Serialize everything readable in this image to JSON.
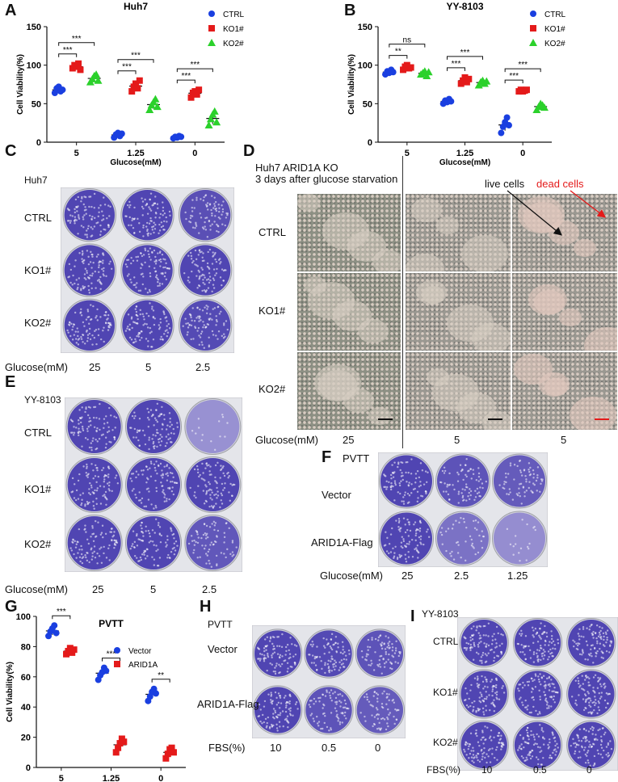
{
  "panels": {
    "A": "A",
    "B": "B",
    "C": "C",
    "D": "D",
    "E": "E",
    "F": "F",
    "G": "G",
    "H": "H",
    "I": "I"
  },
  "colors": {
    "ctrl": "#1a3fe0",
    "ko1": "#e41a1a",
    "ko2": "#2bd12b",
    "stain": "#3b2fa8",
    "stain_light": "#c9c4e8"
  },
  "chart_data": [
    {
      "id": "A",
      "type": "scatter",
      "title": "Huh7",
      "xlabel": "Glucose(mM)",
      "ylabel": "Cell Viability(%)",
      "categories": [
        "5",
        "1.25",
        "0"
      ],
      "ylim": [
        0,
        150
      ],
      "yticks": [
        0,
        50,
        100,
        150
      ],
      "series": [
        {
          "name": "CTRL",
          "color": "#1a3fe0",
          "marker": "circle",
          "values": [
            [
              64,
              70,
              72,
              66,
              68
            ],
            [
              6,
              10,
              12,
              8,
              11
            ],
            [
              5,
              7,
              6,
              8,
              7
            ]
          ]
        },
        {
          "name": "KO1#",
          "color": "#e41a1a",
          "marker": "square",
          "values": [
            [
              96,
              100,
              98,
              102,
              94
            ],
            [
              66,
              72,
              76,
              70,
              80
            ],
            [
              58,
              64,
              66,
              62,
              68
            ]
          ]
        },
        {
          "name": "KO2#",
          "color": "#2bd12b",
          "marker": "triangle",
          "values": [
            [
              78,
              82,
              86,
              88,
              80
            ],
            [
              42,
              48,
              52,
              56,
              46
            ],
            [
              22,
              30,
              36,
              40,
              26
            ]
          ]
        }
      ],
      "legend_position": "top-right",
      "annotations": [
        {
          "text": "***",
          "from": 0,
          "to": 1,
          "cat": 0,
          "level": 0
        },
        {
          "text": "***",
          "from": 0,
          "to": 2,
          "cat": 0,
          "level": 1
        },
        {
          "text": "***",
          "from": 0,
          "to": 1,
          "cat": 1,
          "level": 0
        },
        {
          "text": "***",
          "from": 0,
          "to": 2,
          "cat": 1,
          "level": 1
        },
        {
          "text": "***",
          "from": 0,
          "to": 1,
          "cat": 2,
          "level": 0
        },
        {
          "text": "***",
          "from": 0,
          "to": 2,
          "cat": 2,
          "level": 1
        }
      ]
    },
    {
      "id": "B",
      "type": "scatter",
      "title": "YY-8103",
      "xlabel": "Glucose(mM)",
      "ylabel": "Cell Viability(%)",
      "categories": [
        "5",
        "1.25",
        "0"
      ],
      "ylim": [
        0,
        150
      ],
      "yticks": [
        0,
        50,
        100,
        150
      ],
      "series": [
        {
          "name": "CTRL",
          "color": "#1a3fe0",
          "marker": "circle",
          "values": [
            [
              88,
              92,
              90,
              94,
              91
            ],
            [
              50,
              54,
              52,
              56,
              53
            ],
            [
              12,
              20,
              26,
              32,
              22
            ]
          ]
        },
        {
          "name": "KO1#",
          "color": "#e41a1a",
          "marker": "square",
          "values": [
            [
              94,
              98,
              100,
              96,
              97
            ],
            [
              76,
              80,
              84,
              78,
              82
            ],
            [
              66,
              68,
              66,
              67,
              68
            ]
          ]
        },
        {
          "name": "KO2#",
          "color": "#2bd12b",
          "marker": "triangle",
          "values": [
            [
              88,
              90,
              92,
              86,
              91
            ],
            [
              74,
              78,
              80,
              76,
              79
            ],
            [
              42,
              46,
              50,
              48,
              45
            ]
          ]
        }
      ],
      "legend_position": "top-right",
      "annotations": [
        {
          "text": "**",
          "from": 0,
          "to": 1,
          "cat": 0,
          "level": 0
        },
        {
          "text": "ns",
          "from": 0,
          "to": 2,
          "cat": 0,
          "level": 1
        },
        {
          "text": "***",
          "from": 0,
          "to": 1,
          "cat": 1,
          "level": 0
        },
        {
          "text": "***",
          "from": 0,
          "to": 2,
          "cat": 1,
          "level": 1
        },
        {
          "text": "***",
          "from": 0,
          "to": 1,
          "cat": 2,
          "level": 0
        },
        {
          "text": "***",
          "from": 0,
          "to": 2,
          "cat": 2,
          "level": 1
        }
      ]
    },
    {
      "id": "G",
      "type": "scatter",
      "title": "PVTT",
      "xlabel": "Glucose(mM)",
      "ylabel": "Cell Viability(%)",
      "categories": [
        "5",
        "1.25",
        "0"
      ],
      "ylim": [
        0,
        100
      ],
      "yticks": [
        0,
        20,
        40,
        60,
        80,
        100
      ],
      "series": [
        {
          "name": "Vector",
          "color": "#1a3fe0",
          "marker": "circle",
          "values": [
            [
              87,
              90,
              92,
              94,
              89
            ],
            [
              58,
              61,
              63,
              66,
              64
            ],
            [
              44,
              47,
              50,
              52,
              49
            ]
          ]
        },
        {
          "name": "ARID1A",
          "color": "#e41a1a",
          "marker": "square",
          "values": [
            [
              75,
              77,
              79,
              76,
              78
            ],
            [
              10,
              13,
              16,
              19,
              17
            ],
            [
              6,
              9,
              12,
              13,
              10
            ]
          ]
        }
      ],
      "legend_position": "right",
      "annotations": [
        {
          "text": "***",
          "from": 0,
          "to": 1,
          "cat": 0,
          "level": 0
        },
        {
          "text": "***",
          "from": 0,
          "to": 1,
          "cat": 1,
          "level": 0
        },
        {
          "text": "**",
          "from": 0,
          "to": 1,
          "cat": 2,
          "level": 0
        }
      ]
    }
  ],
  "panelC": {
    "cell_line": "Huh7",
    "rows": [
      "CTRL",
      "KO1#",
      "KO2#"
    ],
    "x_title": "Glucose(mM)",
    "x_values": [
      "25",
      "5",
      "2.5"
    ],
    "density": [
      [
        1,
        1,
        0.9
      ],
      [
        1,
        1,
        1
      ],
      [
        1,
        1,
        0.95
      ]
    ]
  },
  "panelD": {
    "title_line1": "Huh7 ARID1A KO",
    "title_line2": "3 days after glucose starvation",
    "rows": [
      "CTRL",
      "KO1#",
      "KO2#"
    ],
    "x_title": "Glucose(mM)",
    "x_values": [
      "25",
      "5",
      "5"
    ],
    "live_label": "live cells",
    "dead_label": "dead cells"
  },
  "panelE": {
    "cell_line": "YY-8103",
    "rows": [
      "CTRL",
      "KO1#",
      "KO2#"
    ],
    "x_title": "Glucose(mM)",
    "x_values": [
      "25",
      "5",
      "2.5"
    ],
    "density": [
      [
        1,
        1,
        0.15
      ],
      [
        1,
        1,
        1
      ],
      [
        1,
        1,
        0.8
      ]
    ]
  },
  "panelF": {
    "cell_line": "PVTT",
    "rows": [
      "Vector",
      "ARID1A-Flag"
    ],
    "x_title": "Glucose(mM)",
    "x_values": [
      "25",
      "2.5",
      "1.25"
    ],
    "density": [
      [
        1,
        0.85,
        0.75
      ],
      [
        1,
        0.5,
        0.2
      ]
    ]
  },
  "panelH": {
    "cell_line": "PVTT",
    "rows": [
      "Vector",
      "ARID1A-Flag"
    ],
    "x_title": "FBS(%)",
    "x_values": [
      "10",
      "0.5",
      "0"
    ],
    "density": [
      [
        1,
        0.95,
        0.85
      ],
      [
        1,
        0.85,
        0.75
      ]
    ]
  },
  "panelI": {
    "cell_line": "YY-8103",
    "rows": [
      "CTRL",
      "KO1#",
      "KO2#"
    ],
    "x_title": "FBS(%)",
    "x_values": [
      "10",
      "0.5",
      "0"
    ],
    "density": [
      [
        1,
        1,
        1
      ],
      [
        1,
        1,
        1
      ],
      [
        1,
        1,
        1
      ]
    ]
  }
}
